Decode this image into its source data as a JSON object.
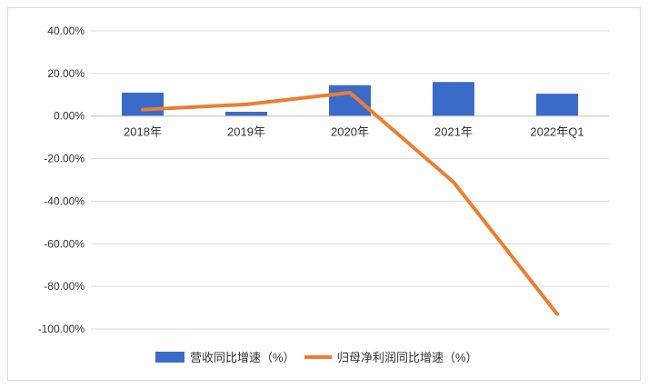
{
  "chart_data": {
    "type": "bar",
    "categories": [
      "2018年",
      "2019年",
      "2020年",
      "2021年",
      "2022年Q1"
    ],
    "series": [
      {
        "name": "营收同比增速（%）",
        "type": "bar",
        "color": "#3a6bc9",
        "values": [
          11.0,
          2.0,
          14.5,
          16.0,
          10.5
        ]
      },
      {
        "name": "归母净利润同比增速（%）",
        "type": "line",
        "color": "#ed7d31",
        "values": [
          3.0,
          5.5,
          11.0,
          -31.0,
          -93.0
        ]
      }
    ],
    "ylim": [
      -100,
      40
    ],
    "yticks": [
      40,
      20,
      0,
      -20,
      -40,
      -60,
      -80,
      -100
    ],
    "ytick_labels": [
      "40.00%",
      "20.00%",
      "0.00%",
      "-20.00%",
      "-40.00%",
      "-60.00%",
      "-80.00%",
      "-100.00%"
    ],
    "grid": true,
    "legend_position": "bottom"
  }
}
